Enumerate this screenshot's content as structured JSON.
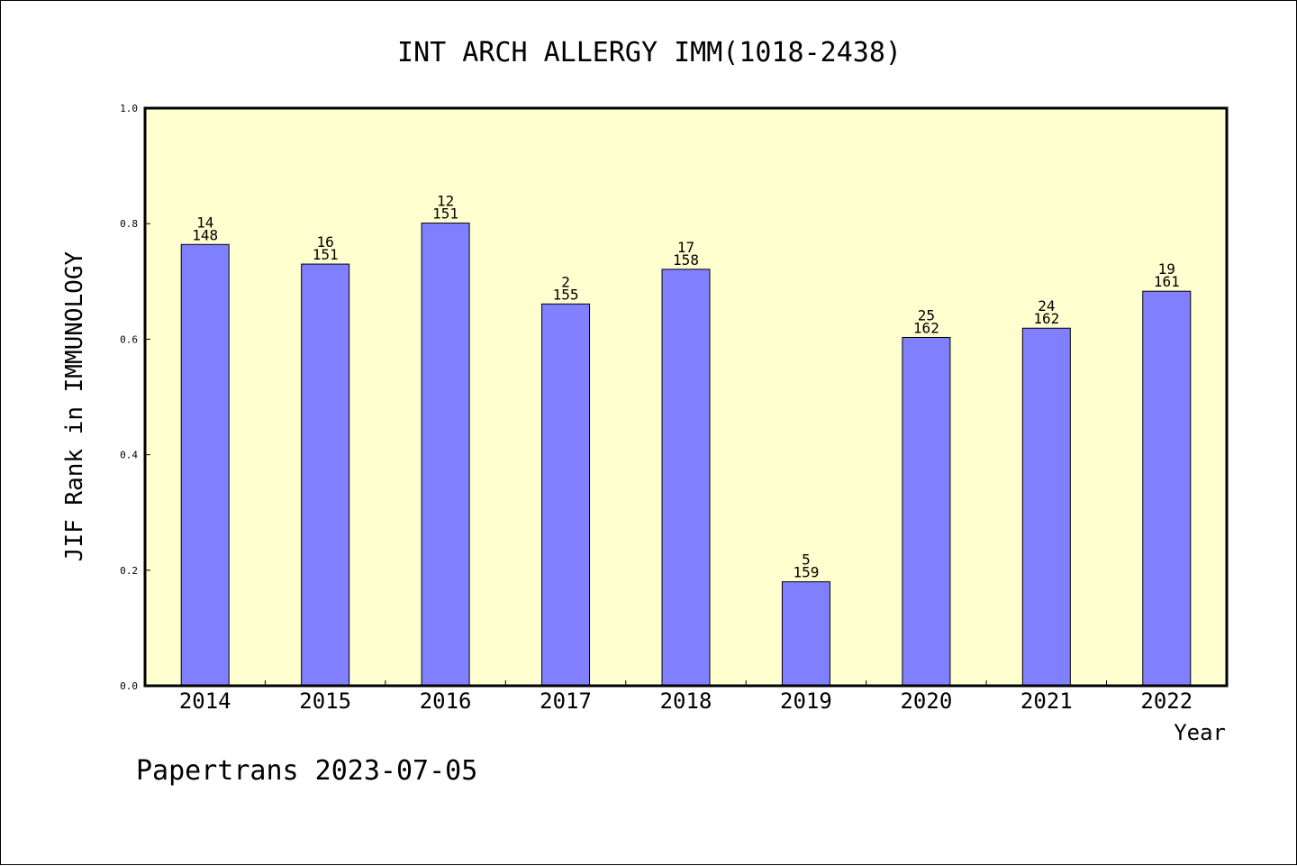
{
  "chart_data": {
    "type": "bar",
    "title": "INT ARCH ALLERGY IMM(1018-2438)",
    "xlabel": "Year",
    "ylabel": "JIF Rank in IMMUNOLOGY",
    "ylim": [
      0,
      1.0
    ],
    "yticks": [
      "0.0",
      "0.2",
      "0.4",
      "0.6",
      "0.8",
      "1.0"
    ],
    "grid": false,
    "legend": "none",
    "categories": [
      "2014",
      "2015",
      "2016",
      "2017",
      "2018",
      "2019",
      "2020",
      "2021",
      "2022"
    ],
    "values": [
      0.764,
      0.73,
      0.801,
      0.661,
      0.721,
      0.18,
      0.603,
      0.619,
      0.683
    ],
    "rank_labels": [
      "14",
      "16",
      "12",
      "2",
      "17",
      "5",
      "25",
      "24",
      "19"
    ],
    "total_labels": [
      "148",
      "151",
      "151",
      "155",
      "158",
      "159",
      "162",
      "162",
      "161"
    ],
    "colors": {
      "plot_background": "#ffffd0",
      "bar_fill": "#8080ff",
      "bar_stroke": "#000000"
    }
  },
  "footer": {
    "text": "Papertrans 2023-07-05"
  }
}
